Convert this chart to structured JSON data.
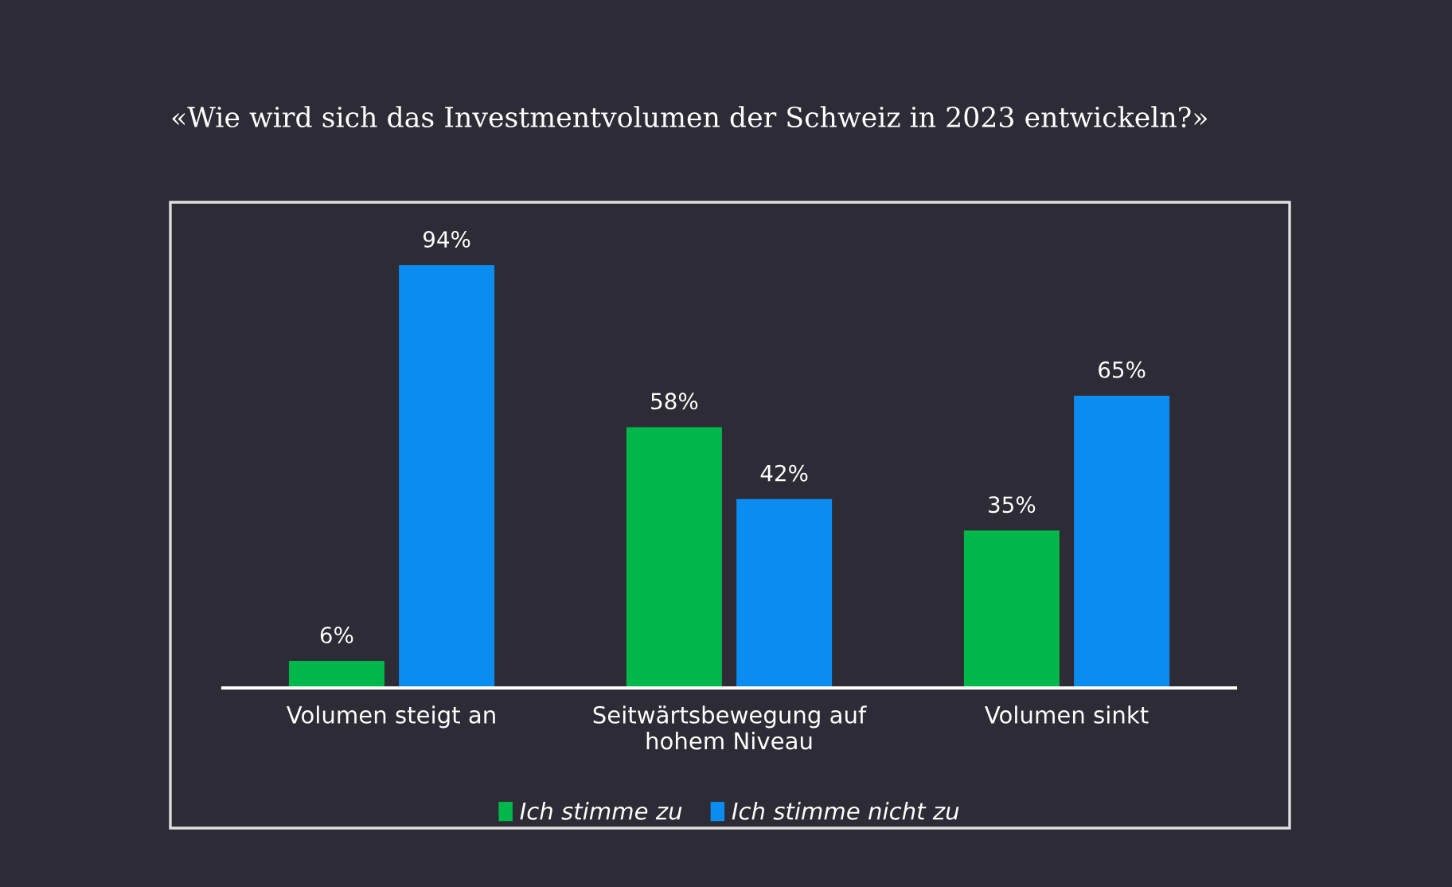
{
  "chart_data": {
    "type": "bar",
    "title": "«Wie wird sich das Investmentvolumen der Schweiz in 2023 entwickeln?»",
    "categories": [
      "Volumen steigt an",
      "Seitwärtsbewegung auf\nhohem Niveau",
      "Volumen sinkt"
    ],
    "series": [
      {
        "name": "Ich stimme zu",
        "color": "#00b84a",
        "values": [
          6,
          58,
          35
        ],
        "value_labels": [
          "6%",
          "58%",
          "35%"
        ]
      },
      {
        "name": "Ich stimme nicht zu",
        "color": "#0a8cf0",
        "values": [
          94,
          42,
          65
        ],
        "value_labels": [
          "94%",
          "42%",
          "65%"
        ]
      }
    ],
    "legend": "bottom",
    "grid": false
  }
}
